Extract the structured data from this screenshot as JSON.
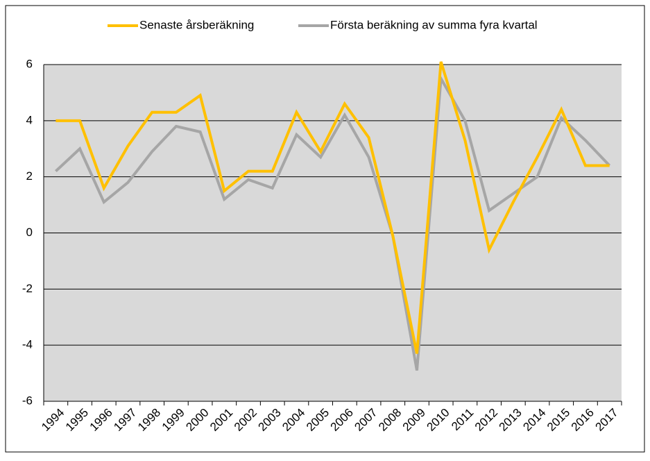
{
  "chart_data": {
    "type": "line",
    "categories": [
      "1994",
      "1995",
      "1996",
      "1997",
      "1998",
      "1999",
      "2000",
      "2001",
      "2002",
      "2003",
      "2004",
      "2005",
      "2006",
      "2007",
      "2008",
      "2009",
      "2010",
      "2011",
      "2012",
      "2013",
      "2014",
      "2015",
      "2016",
      "2017"
    ],
    "series": [
      {
        "name": "Senaste årsberäkning",
        "color": "#ffc000",
        "values": [
          4.0,
          4.0,
          1.6,
          3.1,
          4.3,
          4.3,
          4.9,
          1.5,
          2.2,
          2.2,
          4.3,
          2.9,
          4.6,
          3.4,
          -0.1,
          -4.3,
          6.1,
          3.3,
          -0.6,
          1.1,
          2.7,
          4.4,
          2.4,
          2.4
        ]
      },
      {
        "name": "Första beräkning av summa fyra kvartal",
        "color": "#a6a6a6",
        "values": [
          2.2,
          3.0,
          1.1,
          1.8,
          2.9,
          3.8,
          3.6,
          1.2,
          1.9,
          1.6,
          3.5,
          2.7,
          4.2,
          2.7,
          -0.1,
          -4.9,
          5.5,
          4.0,
          0.8,
          1.4,
          2.0,
          4.1,
          3.3,
          2.4
        ]
      }
    ],
    "ylim": [
      -6,
      6
    ],
    "yticks": [
      -6,
      -4,
      -2,
      0,
      2,
      4,
      6
    ],
    "grid": true,
    "legend": "top"
  }
}
